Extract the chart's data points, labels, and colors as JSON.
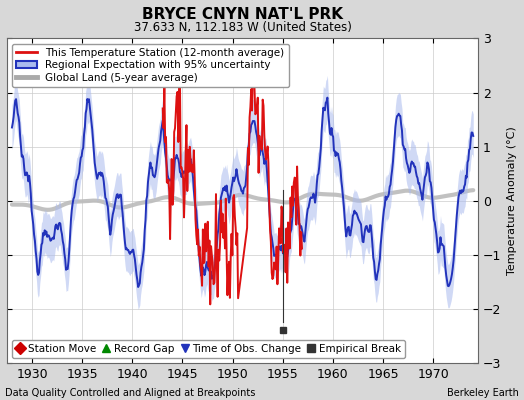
{
  "title": "BRYCE CNYN NAT'L PRK",
  "subtitle": "37.633 N, 112.183 W (United States)",
  "ylabel": "Temperature Anomaly (°C)",
  "xlabel_bottom": "Data Quality Controlled and Aligned at Breakpoints",
  "xlabel_right": "Berkeley Earth",
  "xlim": [
    1927.5,
    1974.5
  ],
  "ylim": [
    -3,
    3
  ],
  "yticks": [
    -3,
    -2,
    -1,
    0,
    1,
    2,
    3
  ],
  "xticks": [
    1930,
    1935,
    1940,
    1945,
    1950,
    1955,
    1960,
    1965,
    1970
  ],
  "outer_bg": "#d8d8d8",
  "plot_bg": "#ffffff",
  "empirical_break_x": 1955.0,
  "empirical_break_y": -2.38,
  "legend_labels": [
    "This Temperature Station (12-month average)",
    "Regional Expectation with 95% uncertainty",
    "Global Land (5-year average)"
  ],
  "legend_colors": [
    "#dd1111",
    "#2233bb",
    "#aaaaaa"
  ],
  "uncertainty_color": "#aabbee",
  "marker_labels": [
    "Station Move",
    "Record Gap",
    "Time of Obs. Change",
    "Empirical Break"
  ],
  "marker_colors": [
    "#cc0000",
    "#008800",
    "#2233bb",
    "#333333"
  ],
  "marker_shapes": [
    "D",
    "^",
    "v",
    "s"
  ]
}
